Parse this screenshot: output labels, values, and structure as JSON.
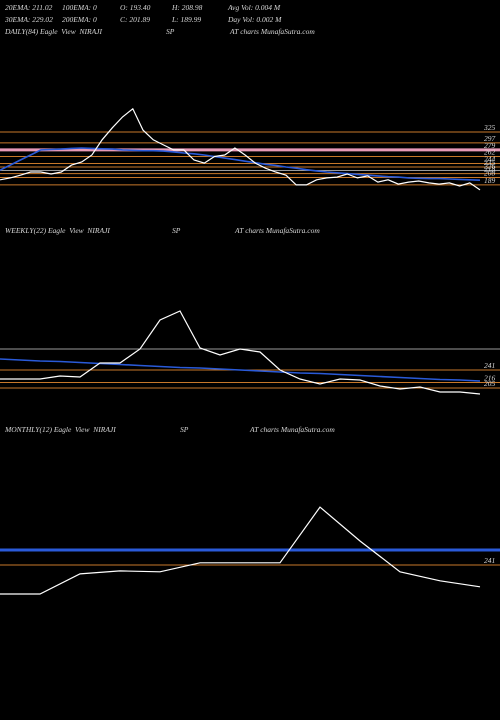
{
  "header": {
    "row1": [
      "20EMA: 211.02",
      "100EMA: 0",
      "O: 193.40",
      "H: 208.98",
      "Avg Vol: 0.004 M"
    ],
    "row2": [
      "30EMA: 229.02",
      "200EMA: 0",
      "C: 201.89",
      "L: 189.99",
      "Day Vol: 0.002 M"
    ]
  },
  "chart_data": [
    {
      "type": "line",
      "title": [
        "DAILY(84) Eagle  View  NIRAJI",
        "SP",
        "AT charts MunafaSutra.com"
      ],
      "ylim": [
        150,
        575
      ],
      "levels": [
        {
          "value": 325,
          "color": "#c8782a",
          "width": 1
        },
        {
          "value": 297,
          "color": "#c8782a",
          "width": 1
        },
        {
          "value": 279,
          "color": "#e89ab8",
          "width": 3
        },
        {
          "value": 262,
          "color": "#c8782a",
          "width": 1
        },
        {
          "value": 244,
          "color": "#c8782a",
          "width": 1
        },
        {
          "value": 235,
          "color": "#c8782a",
          "width": 1
        },
        {
          "value": 226,
          "color": "#9a9a9a",
          "width": 1
        },
        {
          "value": 218,
          "color": "#c8782a",
          "width": 1
        },
        {
          "value": 208,
          "color": "#c8782a",
          "width": 1
        },
        {
          "value": 189,
          "color": "#c8782a",
          "width": 1
        }
      ],
      "series": [
        {
          "color": "#2a5ad8",
          "values": [
            227,
            240,
            253,
            266,
            279,
            280,
            281,
            283,
            284,
            283,
            282,
            281,
            279,
            278,
            277,
            277,
            276,
            274,
            271,
            269,
            266,
            262,
            258,
            254,
            250,
            246,
            242,
            239,
            235,
            232,
            228,
            225,
            222,
            220,
            218,
            216,
            214,
            212,
            210,
            209,
            207,
            206,
            205,
            205,
            204,
            203,
            202,
            201
          ]
        },
        {
          "color": "#ffffff",
          "values": [
            202,
            207,
            214,
            222,
            222,
            217,
            222,
            240,
            248,
            266,
            305,
            336,
            364,
            385,
            330,
            305,
            292,
            279,
            279,
            253,
            245,
            262,
            266,
            284,
            266,
            245,
            232,
            222,
            214,
            189,
            189,
            202,
            207,
            209,
            217,
            207,
            212,
            196,
            202,
            191,
            196,
            199,
            194,
            191,
            194,
            186,
            194,
            176
          ]
        }
      ]
    },
    {
      "type": "line",
      "title": [
        "WEEKLY(22) Eagle  View  NIRAJI",
        "SP",
        "AT charts MunafaSutra.com"
      ],
      "ylim": [
        181,
        521
      ],
      "levels": [
        {
          "value": 283,
          "color": "#9a9a9a",
          "width": 1,
          "labeled": false
        },
        {
          "value": 241,
          "color": "#c8782a",
          "width": 1
        },
        {
          "value": 216,
          "color": "#c8782a",
          "width": 1
        },
        {
          "value": 205,
          "color": "#c8782a",
          "width": 1
        }
      ],
      "series": [
        {
          "color": "#2a5ad8",
          "values": [
            263,
            261,
            259,
            258,
            256,
            254,
            252,
            250,
            248,
            246,
            245,
            243,
            241,
            239,
            237,
            235,
            234,
            232,
            230,
            228,
            226,
            224,
            222,
            221,
            219
          ]
        },
        {
          "color": "#ffffff",
          "values": [
            223,
            223,
            223,
            229,
            227,
            255,
            255,
            283,
            341,
            359,
            285,
            271,
            283,
            277,
            241,
            223,
            213,
            223,
            221,
            209,
            203,
            207,
            197,
            197,
            193
          ]
        }
      ]
    },
    {
      "type": "line",
      "title": [
        "MONTHLY(12) Eagle  View  NIRAJI",
        "SP",
        "AT charts MunafaSutra.com"
      ],
      "ylim": [
        124,
        658
      ],
      "levels": [
        {
          "value": 291,
          "color": "#2a5ad8",
          "width": 3,
          "labeled": false
        },
        {
          "value": 241,
          "color": "#c8782a",
          "width": 1
        }
      ],
      "series": [
        {
          "color": "#ffffff",
          "values": [
            144,
            144,
            211,
            221,
            218,
            248,
            248,
            248,
            434,
            321,
            218,
            188,
            168
          ]
        }
      ]
    }
  ]
}
